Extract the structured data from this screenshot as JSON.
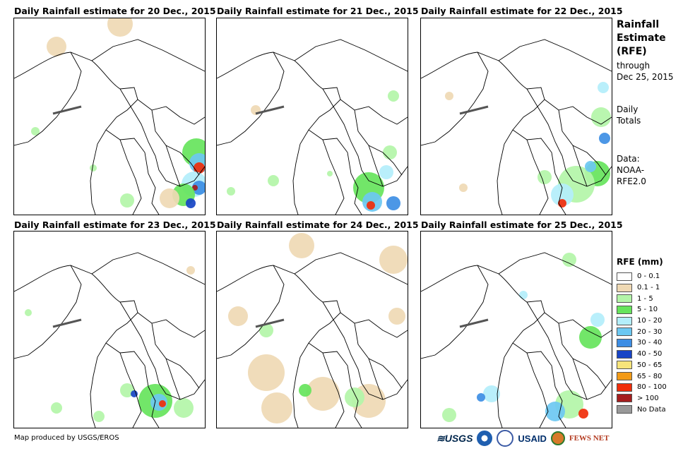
{
  "panels": [
    {
      "title": "Daily Rainfall estimate for 20 Dec., 2015",
      "rain": [
        {
          "x": 150,
          "y": 8,
          "r": 18,
          "c": "0.1-1"
        },
        {
          "x": 60,
          "y": 40,
          "r": 14,
          "c": "0.1-1"
        },
        {
          "x": 258,
          "y": 190,
          "r": 20,
          "c": "5-10"
        },
        {
          "x": 262,
          "y": 205,
          "r": 14,
          "c": "20-30"
        },
        {
          "x": 262,
          "y": 212,
          "r": 8,
          "c": "80-100"
        },
        {
          "x": 255,
          "y": 235,
          "r": 18,
          "c": "10-20"
        },
        {
          "x": 262,
          "y": 240,
          "r": 10,
          "c": "30-40"
        },
        {
          "x": 256,
          "y": 240,
          "r": 4,
          "c": ">100"
        },
        {
          "x": 240,
          "y": 250,
          "r": 16,
          "c": "5-10"
        },
        {
          "x": 220,
          "y": 255,
          "r": 14,
          "c": "0.1-1"
        },
        {
          "x": 160,
          "y": 258,
          "r": 10,
          "c": "1-5"
        },
        {
          "x": 112,
          "y": 212,
          "r": 5,
          "c": "1-5"
        },
        {
          "x": 30,
          "y": 160,
          "r": 6,
          "c": "1-5"
        },
        {
          "x": 250,
          "y": 262,
          "r": 7,
          "c": "40-50"
        }
      ]
    },
    {
      "title": "Daily Rainfall estimate for 21 Dec., 2015",
      "rain": [
        {
          "x": 215,
          "y": 240,
          "r": 22,
          "c": "5-10"
        },
        {
          "x": 220,
          "y": 260,
          "r": 14,
          "c": "20-30"
        },
        {
          "x": 218,
          "y": 265,
          "r": 6,
          "c": "80-100"
        },
        {
          "x": 240,
          "y": 218,
          "r": 10,
          "c": "10-20"
        },
        {
          "x": 245,
          "y": 190,
          "r": 10,
          "c": "1-5"
        },
        {
          "x": 250,
          "y": 262,
          "r": 10,
          "c": "30-40"
        },
        {
          "x": 20,
          "y": 245,
          "r": 6,
          "c": "1-5"
        },
        {
          "x": 80,
          "y": 230,
          "r": 8,
          "c": "1-5"
        },
        {
          "x": 55,
          "y": 130,
          "r": 7,
          "c": "0.1-1"
        },
        {
          "x": 250,
          "y": 110,
          "r": 8,
          "c": "1-5"
        },
        {
          "x": 160,
          "y": 220,
          "r": 4,
          "c": "1-5"
        }
      ]
    },
    {
      "title": "Daily Rainfall estimate for 22 Dec., 2015",
      "rain": [
        {
          "x": 255,
          "y": 140,
          "r": 14,
          "c": "1-5"
        },
        {
          "x": 258,
          "y": 98,
          "r": 8,
          "c": "10-20"
        },
        {
          "x": 250,
          "y": 220,
          "r": 18,
          "c": "5-10"
        },
        {
          "x": 220,
          "y": 235,
          "r": 26,
          "c": "1-5"
        },
        {
          "x": 200,
          "y": 250,
          "r": 16,
          "c": "10-20"
        },
        {
          "x": 200,
          "y": 262,
          "r": 6,
          "c": "80-100"
        },
        {
          "x": 240,
          "y": 210,
          "r": 8,
          "c": "20-30"
        },
        {
          "x": 175,
          "y": 225,
          "r": 10,
          "c": "1-5"
        },
        {
          "x": 60,
          "y": 240,
          "r": 6,
          "c": "0.1-1"
        },
        {
          "x": 40,
          "y": 110,
          "r": 6,
          "c": "0.1-1"
        },
        {
          "x": 260,
          "y": 170,
          "r": 8,
          "c": "30-40"
        }
      ]
    },
    {
      "title": "Daily Rainfall estimate for 23 Dec., 2015",
      "rain": [
        {
          "x": 200,
          "y": 240,
          "r": 24,
          "c": "5-10"
        },
        {
          "x": 205,
          "y": 242,
          "r": 12,
          "c": "20-30"
        },
        {
          "x": 210,
          "y": 244,
          "r": 5,
          "c": "80-100"
        },
        {
          "x": 160,
          "y": 225,
          "r": 10,
          "c": "1-5"
        },
        {
          "x": 240,
          "y": 250,
          "r": 14,
          "c": "1-5"
        },
        {
          "x": 60,
          "y": 250,
          "r": 8,
          "c": "1-5"
        },
        {
          "x": 120,
          "y": 262,
          "r": 8,
          "c": "1-5"
        },
        {
          "x": 20,
          "y": 115,
          "r": 5,
          "c": "1-5"
        },
        {
          "x": 250,
          "y": 55,
          "r": 6,
          "c": "0.1-1"
        },
        {
          "x": 170,
          "y": 230,
          "r": 5,
          "c": "40-50"
        }
      ]
    },
    {
      "title": "Daily Rainfall estimate for 24 Dec., 2015",
      "rain": [
        {
          "x": 120,
          "y": 20,
          "r": 18,
          "c": "0.1-1"
        },
        {
          "x": 250,
          "y": 40,
          "r": 20,
          "c": "0.1-1"
        },
        {
          "x": 30,
          "y": 120,
          "r": 14,
          "c": "0.1-1"
        },
        {
          "x": 70,
          "y": 200,
          "r": 26,
          "c": "0.1-1"
        },
        {
          "x": 85,
          "y": 250,
          "r": 22,
          "c": "0.1-1"
        },
        {
          "x": 150,
          "y": 230,
          "r": 24,
          "c": "0.1-1"
        },
        {
          "x": 215,
          "y": 240,
          "r": 24,
          "c": "0.1-1"
        },
        {
          "x": 195,
          "y": 235,
          "r": 14,
          "c": "1-5"
        },
        {
          "x": 125,
          "y": 225,
          "r": 9,
          "c": "5-10"
        },
        {
          "x": 255,
          "y": 120,
          "r": 12,
          "c": "0.1-1"
        },
        {
          "x": 70,
          "y": 140,
          "r": 10,
          "c": "1-5"
        }
      ]
    },
    {
      "title": "Daily Rainfall estimate for 25 Dec., 2015",
      "rain": [
        {
          "x": 240,
          "y": 150,
          "r": 16,
          "c": "5-10"
        },
        {
          "x": 250,
          "y": 125,
          "r": 10,
          "c": "10-20"
        },
        {
          "x": 210,
          "y": 245,
          "r": 20,
          "c": "1-5"
        },
        {
          "x": 190,
          "y": 255,
          "r": 14,
          "c": "20-30"
        },
        {
          "x": 100,
          "y": 230,
          "r": 12,
          "c": "10-20"
        },
        {
          "x": 85,
          "y": 235,
          "r": 6,
          "c": "30-40"
        },
        {
          "x": 230,
          "y": 258,
          "r": 7,
          "c": "80-100"
        },
        {
          "x": 40,
          "y": 260,
          "r": 10,
          "c": "1-5"
        },
        {
          "x": 145,
          "y": 90,
          "r": 6,
          "c": "10-20"
        },
        {
          "x": 210,
          "y": 40,
          "r": 10,
          "c": "1-5"
        }
      ]
    }
  ],
  "sidebar": {
    "title_lines": [
      "Rainfall",
      "Estimate",
      "(RFE)"
    ],
    "through_label": "through",
    "through_date": "Dec 25, 2015",
    "daily_lines": [
      "Daily",
      "Totals"
    ],
    "data_lines": [
      "Data:",
      "NOAA-",
      "RFE2.0"
    ]
  },
  "legend": {
    "title": "RFE (mm)",
    "items": [
      {
        "key": "0-0.1",
        "label": "0 - 0.1",
        "color": "#ffffff"
      },
      {
        "key": "0.1-1",
        "label": "0.1 - 1",
        "color": "#efd9b4"
      },
      {
        "key": "1-5",
        "label": "1 - 5",
        "color": "#b3f5a8"
      },
      {
        "key": "5-10",
        "label": "5 - 10",
        "color": "#66e45c"
      },
      {
        "key": "10-20",
        "label": "10 - 20",
        "color": "#b3eefb"
      },
      {
        "key": "20-30",
        "label": "20 - 30",
        "color": "#6cc8f2"
      },
      {
        "key": "30-40",
        "label": "30 - 40",
        "color": "#3d8ee4"
      },
      {
        "key": "40-50",
        "label": "40 - 50",
        "color": "#1744c6"
      },
      {
        "key": "50-65",
        "label": "50 - 65",
        "color": "#f7e47a"
      },
      {
        "key": "65-80",
        "label": "65 - 80",
        "color": "#f29a16"
      },
      {
        "key": "80-100",
        "label": "80 - 100",
        "color": "#f02d0a"
      },
      {
        "key": ">100",
        "label": "> 100",
        "color": "#a51d1d"
      },
      {
        "key": "nodata",
        "label": "No Data",
        "color": "#999999"
      }
    ]
  },
  "footer": {
    "credit": "Map produced by USGS/EROS"
  },
  "logos": {
    "usgs": "≋USGS",
    "usaid": "USAID",
    "fews": "FEWS NET"
  }
}
